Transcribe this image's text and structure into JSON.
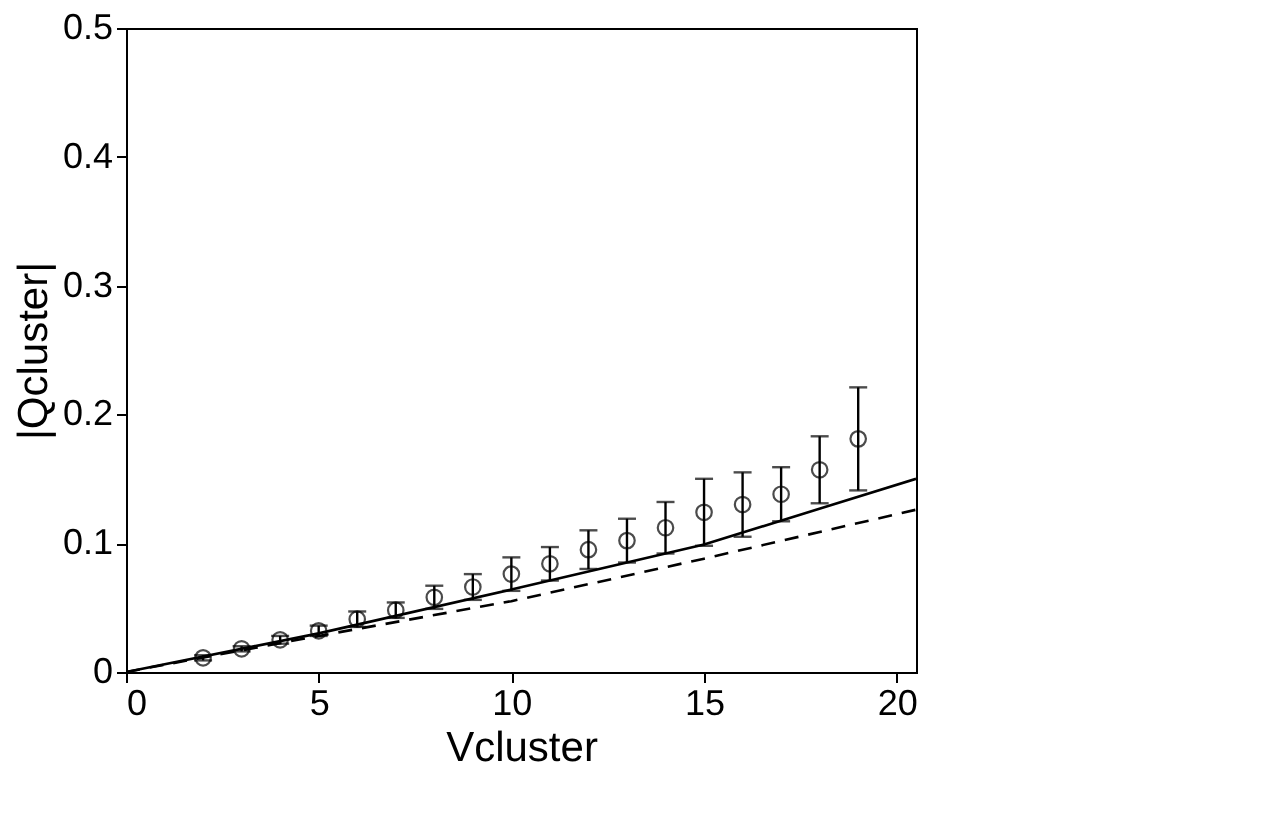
{
  "chart_data": {
    "type": "scatter",
    "xlabel": "Vcluster",
    "ylabel": "|Qcluster|",
    "xlim": [
      0,
      20.5
    ],
    "xticks": [
      0,
      5,
      10,
      15,
      20
    ],
    "ylim": [
      0,
      0.5
    ],
    "yticks": [
      0,
      0.1,
      0.2,
      0.3,
      0.4,
      0.5
    ],
    "grid": false,
    "series": [
      {
        "color": "#000000",
        "marker": "circle",
        "x": [
          2,
          3,
          4,
          5,
          6,
          7,
          8,
          9,
          10,
          11,
          12,
          13,
          14,
          15,
          16,
          17,
          18,
          19
        ],
        "values": [
          0.011,
          0.018,
          0.025,
          0.032,
          0.041,
          0.048,
          0.058,
          0.066,
          0.076,
          0.084,
          0.095,
          0.102,
          0.112,
          0.124,
          0.13,
          0.138,
          0.157,
          0.181
        ],
        "errors": [
          0.002,
          0.002,
          0.003,
          0.004,
          0.006,
          0.006,
          0.009,
          0.01,
          0.013,
          0.013,
          0.015,
          0.017,
          0.02,
          0.026,
          0.025,
          0.021,
          0.026,
          0.04
        ]
      },
      {
        "type": "line",
        "color": "#000000",
        "line_style": "solid",
        "marker": "none",
        "x": [
          0,
          5,
          10,
          15,
          20.5
        ],
        "values": [
          0,
          0.03,
          0.064,
          0.099,
          0.15
        ]
      },
      {
        "type": "line",
        "color": "#000000",
        "line_style": "dashed",
        "marker": "none",
        "x": [
          0,
          5,
          10,
          15,
          20.5
        ],
        "values": [
          0,
          0.028,
          0.055,
          0.088,
          0.126
        ]
      }
    ]
  }
}
